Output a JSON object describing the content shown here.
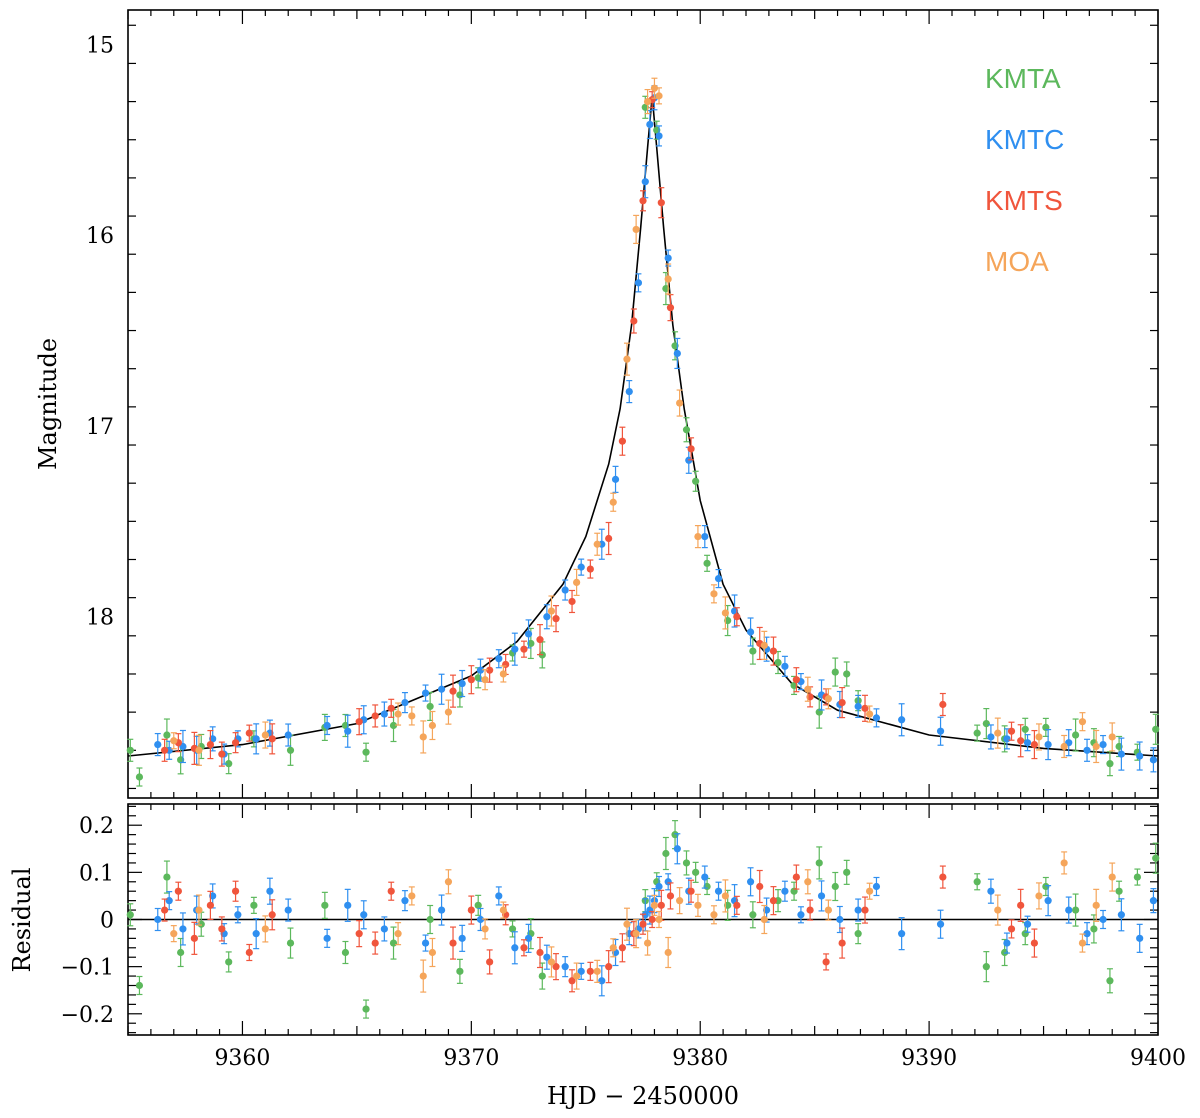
{
  "chart_data": [
    {
      "panel": "main",
      "type": "scatter",
      "xlabel": "",
      "ylabel": "Magnitude",
      "xlim": [
        9355,
        9400
      ],
      "ylim": [
        18.95,
        14.82
      ],
      "y_inverted": true,
      "xticks": [
        9360,
        9370,
        9380,
        9390,
        9400
      ],
      "yticks": [
        15,
        16,
        17,
        18
      ],
      "legend": {
        "placement": "top-right",
        "entries": [
          {
            "name": "KMTA",
            "color": "#5cb85c"
          },
          {
            "name": "KMTC",
            "color": "#2f8ff0"
          },
          {
            "name": "KMTS",
            "color": "#f0553c"
          },
          {
            "name": "MOA",
            "color": "#f5a55a"
          }
        ]
      },
      "model": {
        "color": "#000000",
        "t0": 9377.9,
        "peak_mag": 15.27,
        "x": [
          9355,
          9360,
          9365,
          9370,
          9372,
          9374,
          9375,
          9376,
          9376.5,
          9377,
          9377.4,
          9377.7,
          9377.9,
          9378.1,
          9378.4,
          9378.8,
          9379.3,
          9380,
          9381,
          9382,
          9384,
          9386,
          9390,
          9395,
          9400
        ],
        "y": [
          18.73,
          18.67,
          18.56,
          18.31,
          18.13,
          17.83,
          17.58,
          17.2,
          16.91,
          16.47,
          15.96,
          15.54,
          15.27,
          15.54,
          15.96,
          16.47,
          16.91,
          17.39,
          17.83,
          18.07,
          18.35,
          18.49,
          18.62,
          18.69,
          18.73
        ]
      },
      "series": [
        {
          "name": "KMTA",
          "color": "#5cb85c",
          "x": [
            9355.1,
            9355.5,
            9356.7,
            9357.3,
            9358.2,
            9359.4,
            9360.5,
            9362.1,
            9363.6,
            9364.5,
            9365.4,
            9366.6,
            9368.2,
            9369.5,
            9370.3,
            9371.8,
            9372.6,
            9373.1,
            9377.6,
            9378.1,
            9378.5,
            9378.9,
            9379.4,
            9379.8,
            9380.3,
            9381.2,
            9382.3,
            9383.4,
            9384.1,
            9385.2,
            9385.9,
            9386.4,
            9386.9,
            9392.1,
            9392.5,
            9393.3,
            9394.2,
            9395.1,
            9396.4,
            9397.2,
            9397.9,
            9398.3,
            9399.1,
            9399.9
          ],
          "y": [
            18.7,
            18.84,
            18.62,
            18.75,
            18.68,
            18.77,
            18.64,
            18.7,
            18.58,
            18.57,
            18.71,
            18.57,
            18.47,
            18.41,
            18.32,
            18.19,
            18.14,
            18.2,
            15.33,
            15.45,
            16.28,
            16.58,
            17.02,
            17.29,
            17.72,
            18.02,
            18.18,
            18.24,
            18.36,
            18.5,
            18.29,
            18.3,
            18.44,
            18.61,
            18.56,
            18.64,
            18.59,
            18.58,
            18.62,
            18.66,
            18.77,
            18.68,
            18.71,
            18.59
          ]
        },
        {
          "name": "KMTC",
          "color": "#2f8ff0",
          "x": [
            9356.3,
            9356.8,
            9357.4,
            9358.0,
            9358.7,
            9359.2,
            9359.8,
            9360.6,
            9361.2,
            9362.0,
            9363.7,
            9364.6,
            9365.3,
            9366.2,
            9367.1,
            9368.0,
            9368.7,
            9369.6,
            9370.4,
            9371.2,
            9371.9,
            9372.5,
            9373.3,
            9374.1,
            9374.8,
            9375.7,
            9376.3,
            9376.9,
            9377.3,
            9377.6,
            9377.8,
            9378.0,
            9378.2,
            9378.6,
            9379.0,
            9379.5,
            9380.2,
            9380.8,
            9381.5,
            9382.2,
            9382.9,
            9383.7,
            9384.4,
            9385.3,
            9386.1,
            9386.9,
            9387.7,
            9388.8,
            9390.5,
            9392.7,
            9393.4,
            9394.3,
            9395.2,
            9396.1,
            9396.9,
            9397.6,
            9398.4,
            9399.2,
            9399.8
          ],
          "y": [
            18.67,
            18.7,
            18.68,
            18.7,
            18.64,
            18.72,
            18.64,
            18.64,
            18.61,
            18.62,
            18.57,
            18.6,
            18.54,
            18.51,
            18.45,
            18.4,
            18.38,
            18.35,
            18.28,
            18.22,
            18.17,
            18.09,
            18.0,
            17.86,
            17.74,
            17.62,
            17.28,
            16.82,
            16.25,
            15.72,
            15.42,
            15.28,
            15.48,
            16.12,
            16.62,
            17.18,
            17.58,
            17.8,
            17.97,
            18.08,
            18.17,
            18.26,
            18.34,
            18.41,
            18.46,
            18.47,
            18.53,
            18.54,
            18.6,
            18.63,
            18.64,
            18.66,
            18.67,
            18.66,
            18.7,
            18.67,
            18.72,
            18.73,
            18.75
          ]
        },
        {
          "name": "KMTS",
          "color": "#f0553c",
          "x": [
            9356.6,
            9357.2,
            9357.9,
            9358.6,
            9359.1,
            9359.7,
            9360.3,
            9361.3,
            9365.1,
            9365.8,
            9366.5,
            9369.2,
            9370.0,
            9370.8,
            9371.5,
            9372.3,
            9373.0,
            9373.7,
            9374.4,
            9375.2,
            9376.0,
            9376.6,
            9377.1,
            9377.5,
            9377.9,
            9378.3,
            9378.7,
            9379.6,
            9381.6,
            9382.6,
            9383.2,
            9384.2,
            9384.8,
            9385.5,
            9386.2,
            9387.2,
            9390.6,
            9393.6,
            9394.0,
            9394.6
          ],
          "y": [
            18.7,
            18.66,
            18.69,
            18.67,
            18.72,
            18.66,
            18.61,
            18.64,
            18.55,
            18.52,
            18.48,
            18.39,
            18.33,
            18.28,
            18.25,
            18.17,
            18.12,
            18.01,
            17.92,
            17.75,
            17.59,
            17.08,
            16.45,
            15.82,
            15.29,
            15.83,
            16.38,
            17.12,
            18.0,
            18.14,
            18.18,
            18.33,
            18.42,
            18.42,
            18.45,
            18.48,
            18.46,
            18.6,
            18.65,
            18.67
          ]
        },
        {
          "name": "MOA",
          "color": "#f5a55a",
          "x": [
            9357.0,
            9358.1,
            9361.0,
            9366.8,
            9367.4,
            9367.9,
            9368.3,
            9369.0,
            9370.6,
            9371.4,
            9373.5,
            9374.6,
            9375.5,
            9376.2,
            9376.8,
            9377.2,
            9377.7,
            9378.0,
            9378.2,
            9378.6,
            9379.1,
            9379.9,
            9380.6,
            9381.1,
            9382.8,
            9384.7,
            9385.6,
            9387.4,
            9393.0,
            9394.8,
            9395.9,
            9396.7,
            9397.3,
            9398.0
          ],
          "y": [
            18.65,
            18.7,
            18.62,
            18.51,
            18.52,
            18.63,
            18.57,
            18.5,
            18.33,
            18.3,
            17.97,
            17.82,
            17.62,
            17.4,
            16.65,
            15.97,
            15.3,
            15.23,
            15.27,
            16.23,
            16.88,
            17.58,
            17.88,
            17.98,
            18.15,
            18.38,
            18.43,
            18.51,
            18.61,
            18.63,
            18.68,
            18.55,
            18.68,
            18.63
          ]
        }
      ]
    },
    {
      "panel": "residual",
      "type": "scatter",
      "xlabel": "HJD − 2450000",
      "ylabel": "Residual",
      "xlim": [
        9355,
        9400
      ],
      "ylim": [
        -0.245,
        0.245
      ],
      "xticks": [
        9360,
        9370,
        9380,
        9390,
        9400
      ],
      "yticks": [
        0.2,
        0.1,
        0,
        -0.1,
        -0.2
      ],
      "ytick_labels": [
        "0.2",
        "0.1",
        "0",
        "−0.1",
        "−0.2"
      ],
      "reference_line": 0,
      "series": [
        {
          "name": "KMTA",
          "color": "#5cb85c",
          "x": [
            9355.1,
            9355.5,
            9356.7,
            9357.3,
            9358.2,
            9359.4,
            9360.5,
            9362.1,
            9363.6,
            9364.5,
            9365.4,
            9366.6,
            9368.2,
            9369.5,
            9370.3,
            9371.8,
            9372.6,
            9373.1,
            9377.6,
            9378.1,
            9378.5,
            9378.9,
            9379.4,
            9379.8,
            9380.3,
            9381.2,
            9382.3,
            9383.4,
            9384.1,
            9385.2,
            9385.9,
            9386.4,
            9386.9,
            9392.1,
            9392.5,
            9393.3,
            9394.2,
            9395.1,
            9396.4,
            9397.2,
            9397.9,
            9398.3,
            9399.1,
            9399.9
          ],
          "y": [
            0.01,
            -0.14,
            0.09,
            -0.07,
            -0.01,
            -0.09,
            0.03,
            -0.05,
            0.03,
            -0.07,
            -0.19,
            -0.05,
            0.0,
            -0.11,
            0.03,
            -0.02,
            -0.03,
            -0.12,
            0.04,
            0.08,
            0.14,
            0.18,
            0.12,
            0.1,
            0.07,
            0.03,
            0.01,
            0.04,
            0.06,
            0.12,
            0.07,
            0.1,
            -0.03,
            0.08,
            -0.1,
            -0.07,
            -0.03,
            0.07,
            0.02,
            -0.02,
            -0.13,
            0.06,
            0.09,
            0.13
          ]
        },
        {
          "name": "KMTC",
          "color": "#2f8ff0",
          "x": [
            9356.3,
            9356.8,
            9357.4,
            9358.0,
            9358.7,
            9359.2,
            9359.8,
            9360.6,
            9361.2,
            9362.0,
            9363.7,
            9364.6,
            9365.3,
            9366.2,
            9367.1,
            9368.0,
            9368.7,
            9369.6,
            9370.4,
            9371.2,
            9371.9,
            9372.5,
            9373.3,
            9374.1,
            9374.8,
            9375.7,
            9376.3,
            9376.9,
            9377.3,
            9377.6,
            9377.8,
            9378.0,
            9378.2,
            9378.6,
            9379.0,
            9379.5,
            9380.2,
            9380.8,
            9381.5,
            9382.2,
            9382.9,
            9383.7,
            9384.4,
            9385.3,
            9386.1,
            9386.9,
            9387.7,
            9388.8,
            9390.5,
            9392.7,
            9393.4,
            9394.3,
            9395.2,
            9396.1,
            9396.9,
            9397.6,
            9398.4,
            9399.2,
            9399.8
          ],
          "y": [
            0.0,
            0.04,
            -0.02,
            0.02,
            0.05,
            -0.03,
            0.01,
            -0.03,
            0.06,
            0.02,
            -0.04,
            0.03,
            0.01,
            -0.02,
            0.04,
            -0.05,
            0.02,
            -0.04,
            0.0,
            0.05,
            -0.06,
            -0.04,
            -0.08,
            -0.1,
            -0.11,
            -0.13,
            -0.07,
            -0.03,
            -0.02,
            0.01,
            0.02,
            0.04,
            0.07,
            0.08,
            0.15,
            0.06,
            0.09,
            0.06,
            0.04,
            0.08,
            0.02,
            0.06,
            0.01,
            0.05,
            0.0,
            0.02,
            0.07,
            -0.03,
            -0.01,
            0.06,
            -0.05,
            -0.01,
            0.04,
            0.02,
            -0.03,
            0.0,
            0.01,
            -0.04,
            0.04
          ]
        },
        {
          "name": "KMTS",
          "color": "#f0553c",
          "x": [
            9356.6,
            9357.2,
            9357.9,
            9358.6,
            9359.1,
            9359.7,
            9360.3,
            9361.3,
            9365.1,
            9365.8,
            9366.5,
            9369.2,
            9370.0,
            9370.8,
            9371.5,
            9372.3,
            9373.0,
            9373.7,
            9374.4,
            9375.2,
            9376.0,
            9376.6,
            9377.1,
            9377.5,
            9377.9,
            9378.3,
            9378.7,
            9379.6,
            9381.6,
            9382.6,
            9383.2,
            9384.2,
            9384.8,
            9385.5,
            9386.2,
            9387.2,
            9390.6,
            9393.6,
            9394.0,
            9394.6
          ],
          "y": [
            0.02,
            0.06,
            -0.04,
            0.03,
            -0.02,
            0.06,
            -0.07,
            0.01,
            -0.03,
            -0.05,
            0.06,
            -0.05,
            0.02,
            -0.09,
            0.01,
            -0.06,
            -0.07,
            -0.1,
            -0.13,
            -0.11,
            -0.1,
            -0.06,
            -0.03,
            -0.01,
            0.0,
            0.03,
            0.05,
            0.06,
            0.03,
            0.07,
            0.04,
            0.09,
            0.02,
            -0.09,
            -0.05,
            0.02,
            0.09,
            -0.02,
            0.03,
            -0.05
          ]
        },
        {
          "name": "MOA",
          "color": "#f5a55a",
          "x": [
            9357.0,
            9358.1,
            9361.0,
            9366.8,
            9367.4,
            9367.9,
            9368.3,
            9369.0,
            9370.6,
            9371.4,
            9373.5,
            9374.6,
            9375.5,
            9376.2,
            9376.8,
            9377.2,
            9377.7,
            9378.0,
            9378.2,
            9378.6,
            9379.1,
            9379.9,
            9380.6,
            9381.1,
            9382.8,
            9384.7,
            9385.6,
            9387.4,
            9393.0,
            9394.8,
            9395.9,
            9396.7,
            9397.3,
            9398.0
          ],
          "y": [
            -0.03,
            0.02,
            -0.02,
            -0.03,
            0.05,
            -0.12,
            -0.07,
            0.08,
            -0.02,
            0.02,
            -0.09,
            -0.12,
            -0.11,
            -0.06,
            -0.01,
            -0.03,
            -0.05,
            0.03,
            0.0,
            -0.07,
            0.04,
            0.03,
            0.01,
            0.05,
            0.0,
            0.08,
            0.02,
            0.06,
            0.02,
            0.05,
            0.12,
            -0.05,
            0.03,
            0.09
          ]
        }
      ]
    }
  ]
}
